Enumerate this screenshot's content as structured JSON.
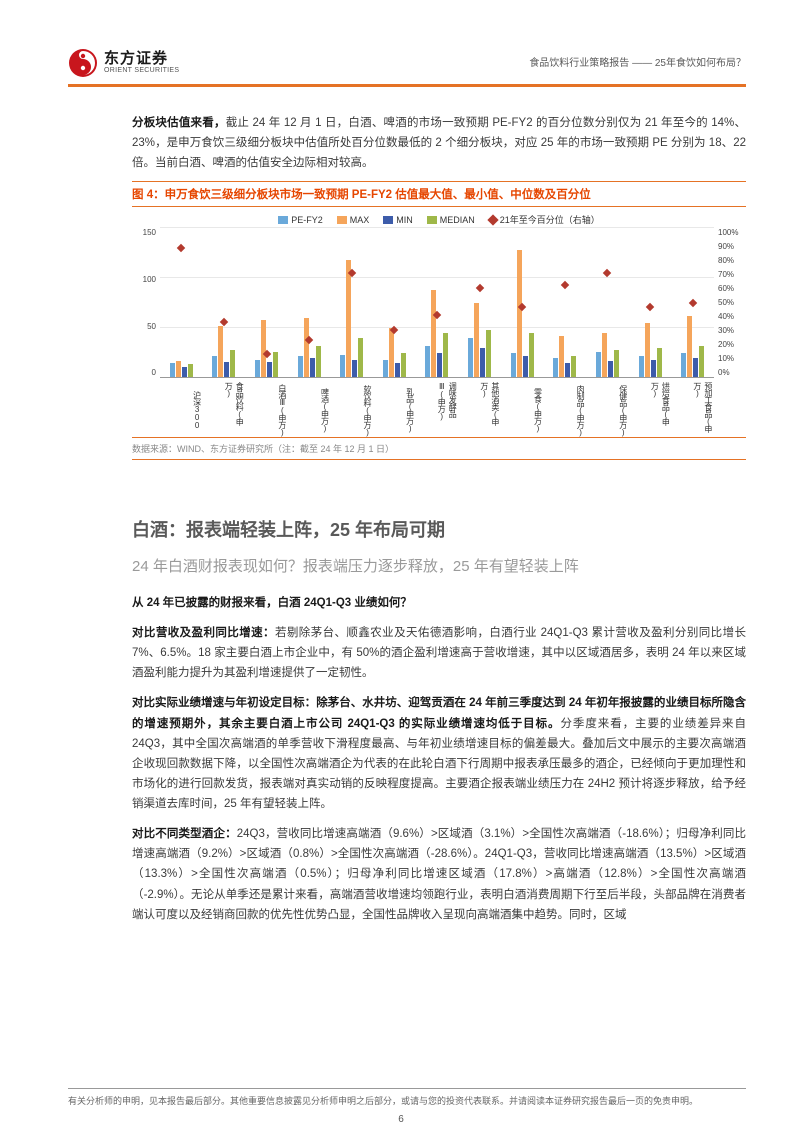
{
  "header": {
    "logo_cn": "东方证券",
    "logo_en": "ORIENT SECURITIES",
    "logo_colors": {
      "red": "#c8161d",
      "dark": "#1a1a1a"
    },
    "right_text": "食品饮料行业策略报告 —— 25年食饮如何布局？"
  },
  "intro_para": {
    "lead_bold": "分板块估值来看，",
    "rest": "截止 24 年 12 月 1 日，白酒、啤酒的市场一致预期 PE-FY2 的百分位数分别仅为 21 年至今的 14%、23%，是申万食饮三级细分板块中估值所处百分位数最低的 2 个细分板块，对应 25 年的市场一致预期 PE 分别为 18、22 倍。当前白酒、啤酒的估值安全边际相对较高。"
  },
  "chart": {
    "title": "图 4：申万食饮三级细分板块市场一致预期 PE-FY2 估值最大值、最小值、中位数及百分位",
    "type": "grouped-bar-with-secondary-scatter",
    "legend": [
      {
        "label": "PE-FY2",
        "color": "#6aa9da",
        "kind": "bar"
      },
      {
        "label": "MAX",
        "color": "#f5a55b",
        "kind": "bar"
      },
      {
        "label": "MIN",
        "color": "#3d5caa",
        "kind": "bar"
      },
      {
        "label": "MEDIAN",
        "color": "#9fb849",
        "kind": "bar"
      },
      {
        "label": "21年至今百分位（右轴）",
        "color": "#b33a2e",
        "kind": "diamond"
      }
    ],
    "ylim_left": [
      0,
      150
    ],
    "ytick_left": [
      0,
      50,
      100,
      150
    ],
    "ylim_right": [
      0,
      100
    ],
    "ytick_right": [
      "0%",
      "10%",
      "20%",
      "30%",
      "40%",
      "50%",
      "60%",
      "70%",
      "80%",
      "90%",
      "100%"
    ],
    "categories": [
      "沪深300",
      "食品饮料(申万)",
      "白酒Ⅲ(申万)",
      "啤酒(申万)",
      "软饮料(申万)",
      "乳品(申万)",
      "调味发酵品Ⅲ(申万)",
      "其他酒类(申万)",
      "零食(申万)",
      "肉制品(申万)",
      "保健品(申万)",
      "烘焙食品(申万)",
      "预加工食品(申万)"
    ],
    "series": {
      "pe_fy2": [
        14,
        22,
        18,
        22,
        23,
        18,
        32,
        40,
        25,
        20,
        26,
        22,
        25
      ],
      "max": [
        16,
        52,
        58,
        60,
        118,
        50,
        88,
        75,
        128,
        42,
        45,
        55,
        62
      ],
      "min": [
        10,
        15,
        15,
        20,
        18,
        14,
        25,
        30,
        22,
        14,
        16,
        18,
        20
      ],
      "median": [
        13,
        28,
        26,
        32,
        40,
        25,
        45,
        48,
        45,
        22,
        28,
        30,
        32
      ],
      "pct_21": [
        85,
        35,
        14,
        23,
        68,
        30,
        40,
        58,
        45,
        60,
        68,
        45,
        48
      ]
    },
    "grid_color": "#e8e8e8",
    "axis_color": "#999999",
    "background_color": "#ffffff",
    "label_fontsize": 8,
    "source": "数据来源：WIND、东方证券研究所（注：截至 24 年 12 月 1 日）"
  },
  "section": {
    "h1": "白酒：报表端轻装上阵，25 年布局可期",
    "h2": "24 年白酒财报表现如何？报表端压力逐步释放，25 年有望轻装上阵"
  },
  "paras": [
    {
      "lead_bold": "从 24 年已披露的财报来看，白酒 24Q1-Q3 业绩如何？",
      "rest": ""
    },
    {
      "lead_bold": "对比营收及盈利同比增速：",
      "rest": "若剔除茅台、顺鑫农业及天佑德酒影响，白酒行业 24Q1-Q3 累计营收及盈利分别同比增长 7%、6.5%。18 家主要白酒上市企业中，有 50%的酒企盈利增速高于营收增速，其中以区域酒居多，表明 24 年以来区域酒盈利能力提升为其盈利增速提供了一定韧性。"
    },
    {
      "lead_bold": "对比实际业绩增速与年初设定目标：",
      "mid_bold": "除茅台、水井坊、迎驾贡酒在 24 年前三季度达到 24 年初年报披露的业绩目标所隐含的增速预期外，其余主要白酒上市公司 24Q1-Q3 的实际业绩增速均低于目标。",
      "rest": "分季度来看，主要的业绩差异来自 24Q3，其中全国次高端酒的单季营收下滑程度最高、与年初业绩增速目标的偏差最大。叠加后文中展示的主要次高端酒企收现回款数据下降，以全国性次高端酒企为代表的在此轮白酒下行周期中报表承压最多的酒企，已经倾向于更加理性和市场化的进行回款发货，报表端对真实动销的反映程度提高。主要酒企报表端业绩压力在 24H2 预计将逐步释放，给予经销渠道去库时间，25 年有望轻装上阵。"
    },
    {
      "lead_bold": "对比不同类型酒企：",
      "rest": "24Q3，营收同比增速高端酒（9.6%）>区域酒（3.1%）>全国性次高端酒（-18.6%）；归母净利同比增速高端酒（9.2%）>区域酒（0.8%）>全国性次高端酒（-28.6%）。24Q1-Q3，营收同比增速高端酒（13.5%）>区域酒（13.3%）>全国性次高端酒（0.5%）；归母净利同比增速区域酒（17.8%）>高端酒（12.8%）>全国性次高端酒（-2.9%）。无论从单季还是累计来看，高端酒营收增速均领跑行业，表明白酒消费周期下行至后半段，头部品牌在消费者端认可度以及经销商回款的优先性优势凸显，全国性品牌收入呈现向高端酒集中趋势。同时，区域"
    }
  ],
  "footer": {
    "text": "有关分析师的申明，见本报告最后部分。其他重要信息披露见分析师申明之后部分，或请与您的投资代表联系。并请阅读本证券研究报告最后一页的免责申明。",
    "page_num": "6"
  }
}
